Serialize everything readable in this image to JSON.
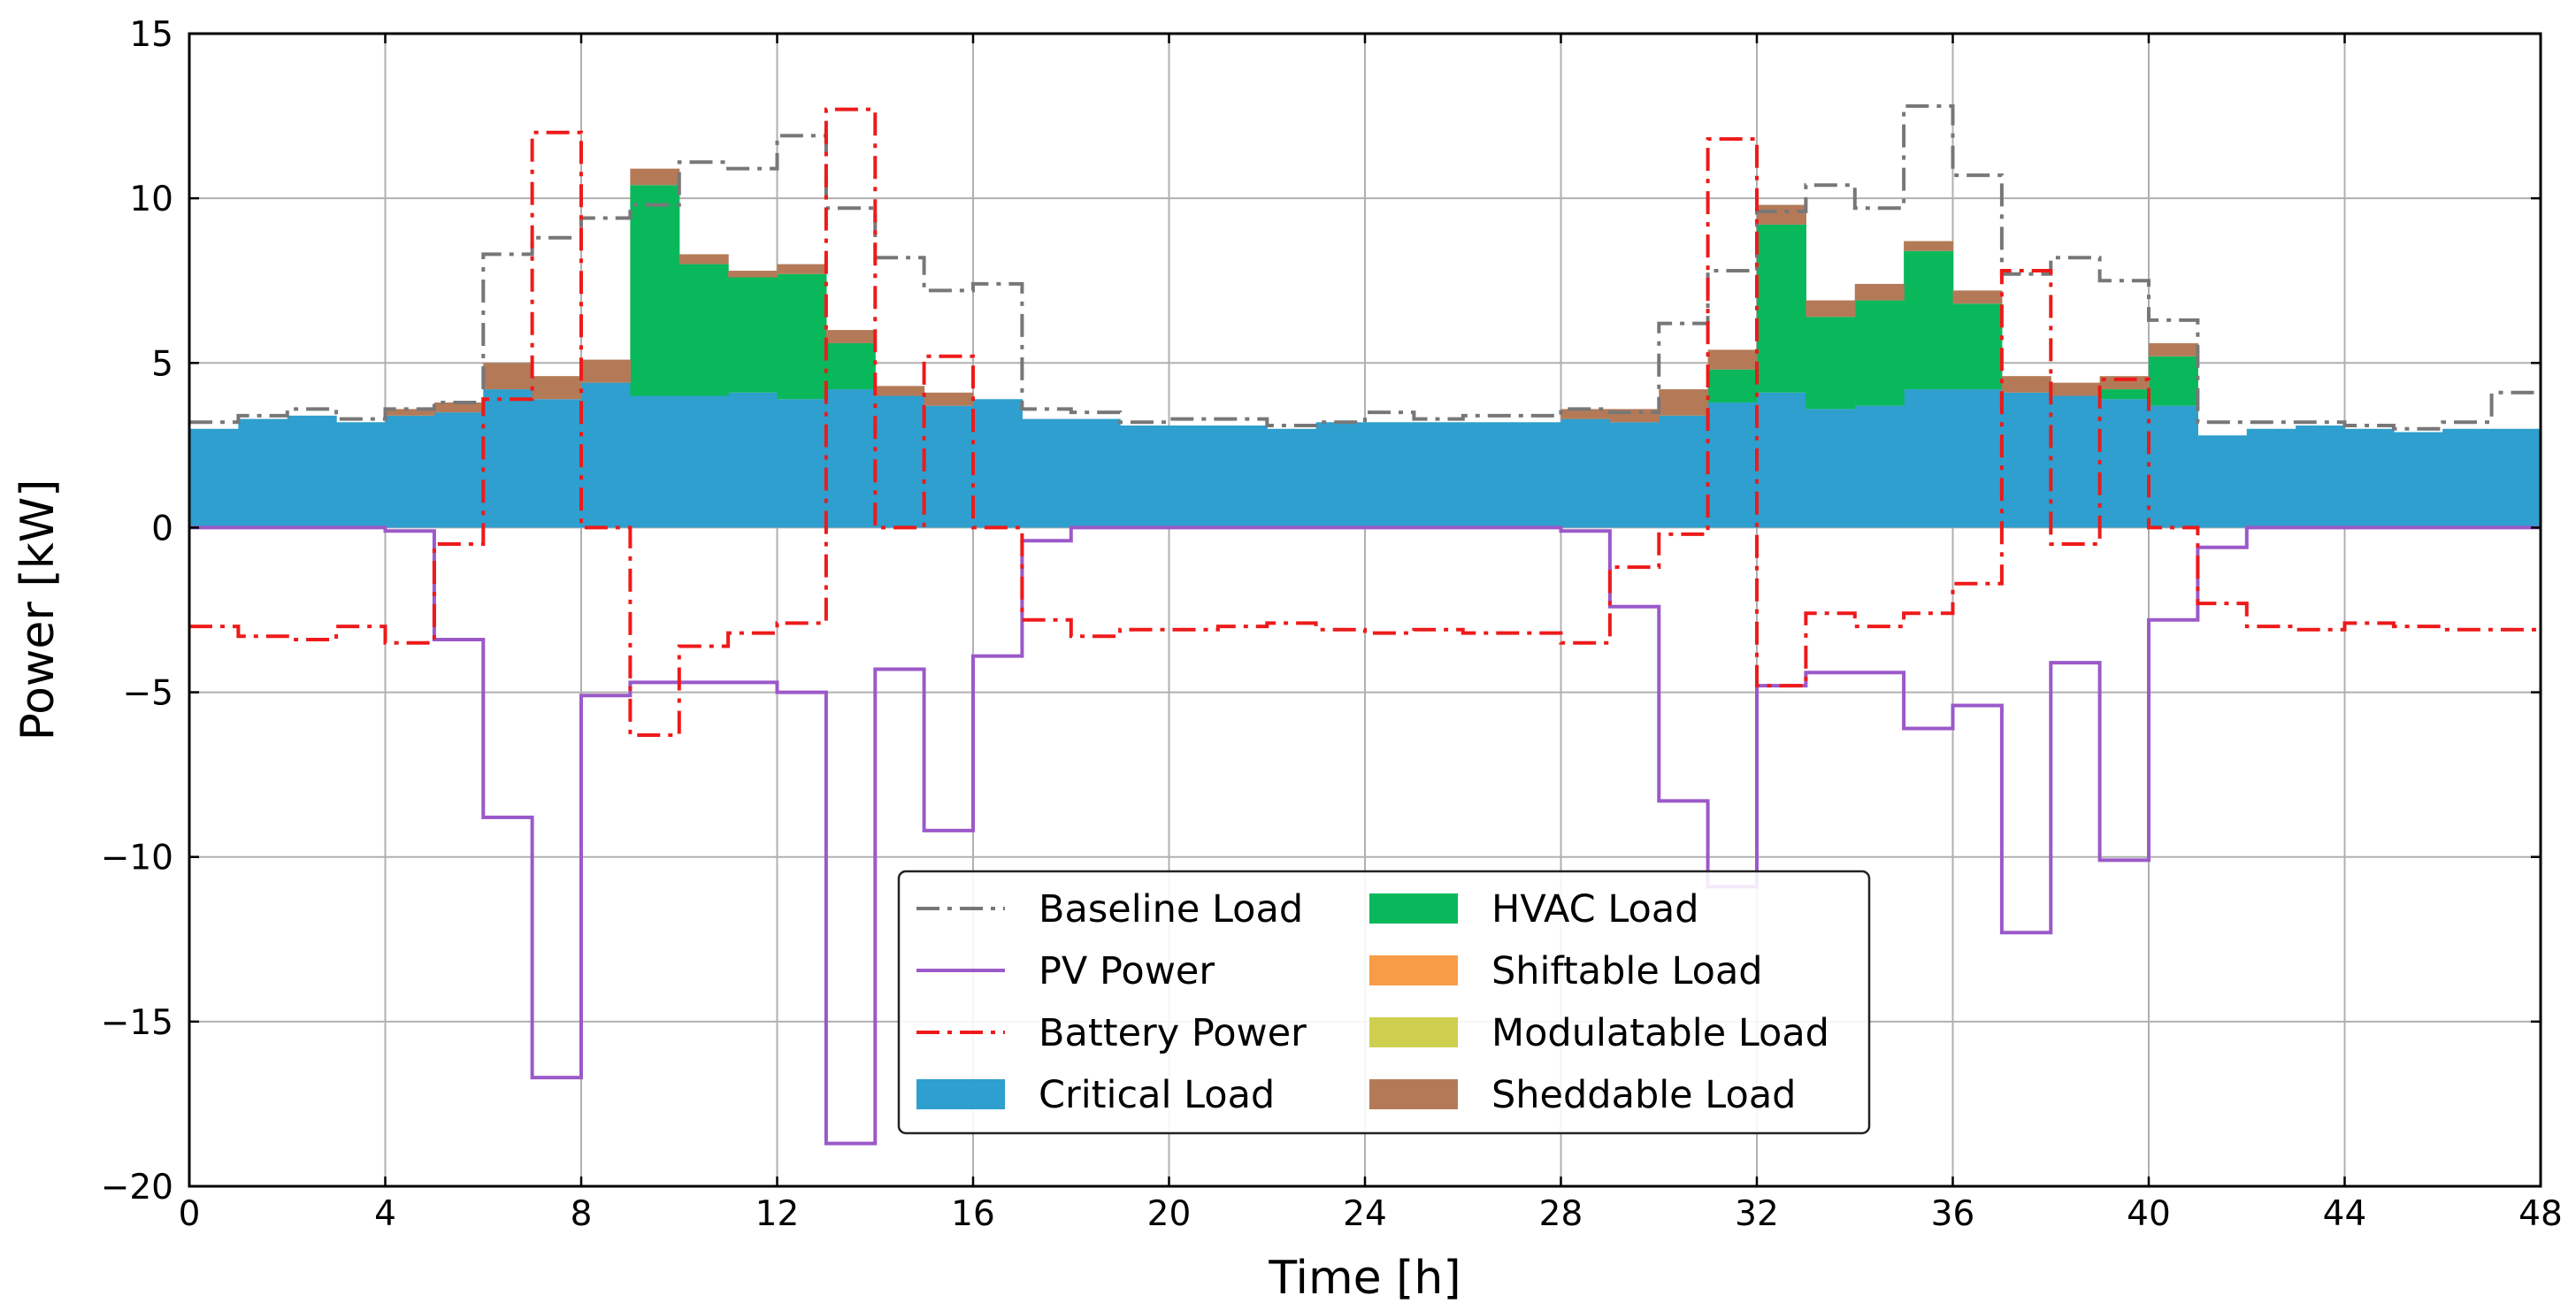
{
  "chart_data": {
    "type": "stacked-step-area-with-lines",
    "title": "",
    "xlabel": "Time [h]",
    "ylabel": "Power [kW]",
    "xlim": [
      0,
      48
    ],
    "ylim": [
      -20,
      15
    ],
    "xticks": [
      0,
      4,
      8,
      12,
      16,
      20,
      24,
      28,
      32,
      36,
      40,
      44,
      48
    ],
    "yticks": [
      -20,
      -15,
      -10,
      -5,
      0,
      5,
      10,
      15
    ],
    "ytick_labels": [
      "−20",
      "−15",
      "−10",
      "−5",
      "0",
      "5",
      "10",
      "15"
    ],
    "grid": true,
    "legend_position": "lower-center",
    "hours": [
      0,
      1,
      2,
      3,
      4,
      5,
      6,
      7,
      8,
      9,
      10,
      11,
      12,
      13,
      14,
      15,
      16,
      17,
      18,
      19,
      20,
      21,
      22,
      23,
      24,
      25,
      26,
      27,
      28,
      29,
      30,
      31,
      32,
      33,
      34,
      35,
      36,
      37,
      38,
      39,
      40,
      41,
      42,
      43,
      44,
      45,
      46,
      47
    ],
    "stacks": [
      {
        "name": "Critical Load",
        "color": "#2e9fce",
        "values": [
          3.0,
          3.3,
          3.4,
          3.2,
          3.4,
          3.5,
          4.2,
          3.9,
          4.4,
          4.0,
          4.0,
          4.1,
          3.9,
          4.2,
          4.0,
          3.7,
          3.9,
          3.3,
          3.3,
          3.1,
          3.1,
          3.1,
          3.0,
          3.2,
          3.2,
          3.2,
          3.2,
          3.2,
          3.3,
          3.2,
          3.4,
          3.8,
          4.1,
          3.6,
          3.7,
          4.2,
          4.2,
          4.1,
          4.0,
          3.9,
          3.7,
          2.8,
          3.0,
          3.1,
          3.0,
          2.9,
          3.0,
          3.0
        ]
      },
      {
        "name": "HVAC Load",
        "color": "#0ab85c",
        "values": [
          0,
          0,
          0,
          0,
          0,
          0,
          0,
          0,
          0,
          6.4,
          4.0,
          3.5,
          3.8,
          1.4,
          0,
          0,
          0,
          0,
          0,
          0,
          0,
          0,
          0,
          0,
          0,
          0,
          0,
          0,
          0,
          0,
          0,
          1.0,
          5.1,
          2.8,
          3.2,
          4.2,
          2.6,
          0,
          0,
          0.3,
          1.5,
          0,
          0,
          0,
          0,
          0,
          0,
          0
        ]
      },
      {
        "name": "Shiftable Load",
        "color": "#f99c47",
        "values": [
          0,
          0,
          0,
          0,
          0,
          0,
          0,
          0,
          0,
          0,
          0,
          0,
          0,
          0,
          0,
          0,
          0,
          0,
          0,
          0,
          0,
          0,
          0,
          0,
          0,
          0,
          0,
          0,
          0,
          0,
          0,
          0,
          0,
          0,
          0,
          0,
          0,
          0,
          0,
          0,
          0,
          0,
          0,
          0,
          0,
          0,
          0,
          0
        ]
      },
      {
        "name": "Modulatable Load",
        "color": "#cfcf4f",
        "values": [
          0,
          0,
          0,
          0,
          0,
          0,
          0,
          0,
          0,
          0,
          0,
          0,
          0,
          0,
          0,
          0,
          0,
          0,
          0,
          0,
          0,
          0,
          0,
          0,
          0,
          0,
          0,
          0,
          0,
          0,
          0,
          0,
          0,
          0,
          0,
          0,
          0,
          0,
          0,
          0,
          0,
          0,
          0,
          0,
          0,
          0,
          0,
          0
        ]
      },
      {
        "name": "Sheddable Load",
        "color": "#b47a58",
        "values": [
          0,
          0,
          0,
          0,
          0.2,
          0.3,
          0.8,
          0.7,
          0.7,
          0.5,
          0.3,
          0.2,
          0.3,
          0.4,
          0.3,
          0.4,
          0,
          0,
          0,
          0,
          0,
          0,
          0,
          0,
          0,
          0,
          0,
          0,
          0.3,
          0.4,
          0.8,
          0.6,
          0.6,
          0.5,
          0.5,
          0.3,
          0.4,
          0.5,
          0.4,
          0.4,
          0.4,
          0,
          0,
          0,
          0,
          0,
          0,
          0
        ]
      }
    ],
    "lines": [
      {
        "name": "Baseline Load",
        "color": "#777777",
        "dash": "dashdot",
        "values": [
          3.2,
          3.4,
          3.6,
          3.3,
          3.6,
          3.8,
          8.3,
          8.8,
          9.4,
          9.8,
          11.1,
          10.9,
          11.9,
          9.7,
          8.2,
          7.2,
          7.4,
          3.6,
          3.5,
          3.2,
          3.3,
          3.3,
          3.1,
          3.2,
          3.5,
          3.3,
          3.4,
          3.4,
          3.6,
          3.5,
          6.2,
          7.8,
          9.6,
          10.4,
          9.7,
          12.8,
          10.7,
          7.7,
          8.2,
          7.5,
          6.3,
          3.2,
          3.2,
          3.2,
          3.1,
          3.0,
          3.2,
          4.1
        ]
      },
      {
        "name": "PV Power",
        "color": "#9b59c9",
        "dash": "solid",
        "values": [
          0,
          0,
          0,
          0,
          -0.1,
          -3.4,
          -8.8,
          -16.7,
          -5.1,
          -4.7,
          -4.7,
          -4.7,
          -5.0,
          -18.7,
          -4.3,
          -9.2,
          -3.9,
          -0.4,
          0,
          0,
          0,
          0,
          0,
          0,
          0,
          0,
          0,
          0,
          -0.1,
          -2.4,
          -8.3,
          -10.9,
          -4.8,
          -4.4,
          -4.4,
          -6.1,
          -5.4,
          -12.3,
          -4.1,
          -10.1,
          -2.8,
          -0.6,
          0,
          0,
          0,
          0,
          0,
          0
        ]
      },
      {
        "name": "Battery Power",
        "color": "#ee1a1a",
        "dash": "dashdot",
        "values": [
          -3.0,
          -3.3,
          -3.4,
          -3.0,
          -3.5,
          -0.5,
          3.9,
          12.0,
          0,
          -6.3,
          -3.6,
          -3.2,
          -2.9,
          12.7,
          0,
          5.2,
          0,
          -2.8,
          -3.3,
          -3.1,
          -3.1,
          -3.0,
          -2.9,
          -3.1,
          -3.2,
          -3.1,
          -3.2,
          -3.2,
          -3.5,
          -1.2,
          -0.2,
          11.8,
          -4.8,
          -2.6,
          -3.0,
          -2.6,
          -1.7,
          7.8,
          -0.5,
          4.5,
          0,
          -2.3,
          -3.0,
          -3.1,
          -2.9,
          -3.0,
          -3.1,
          -3.1
        ]
      }
    ],
    "legend_entries": [
      {
        "name": "Baseline Load",
        "kind": "line",
        "color": "#777777",
        "dash": "dashdot"
      },
      {
        "name": "PV Power",
        "kind": "line",
        "color": "#9b59c9",
        "dash": "solid"
      },
      {
        "name": "Battery Power",
        "kind": "line",
        "color": "#ee1a1a",
        "dash": "dashdot"
      },
      {
        "name": "Critical Load",
        "kind": "patch",
        "color": "#2e9fce"
      },
      {
        "name": "HVAC Load",
        "kind": "patch",
        "color": "#0ab85c"
      },
      {
        "name": "Shiftable Load",
        "kind": "patch",
        "color": "#f99c47"
      },
      {
        "name": "Modulatable Load",
        "kind": "patch",
        "color": "#cfcf4f"
      },
      {
        "name": "Sheddable Load",
        "kind": "patch",
        "color": "#b47a58"
      }
    ]
  }
}
